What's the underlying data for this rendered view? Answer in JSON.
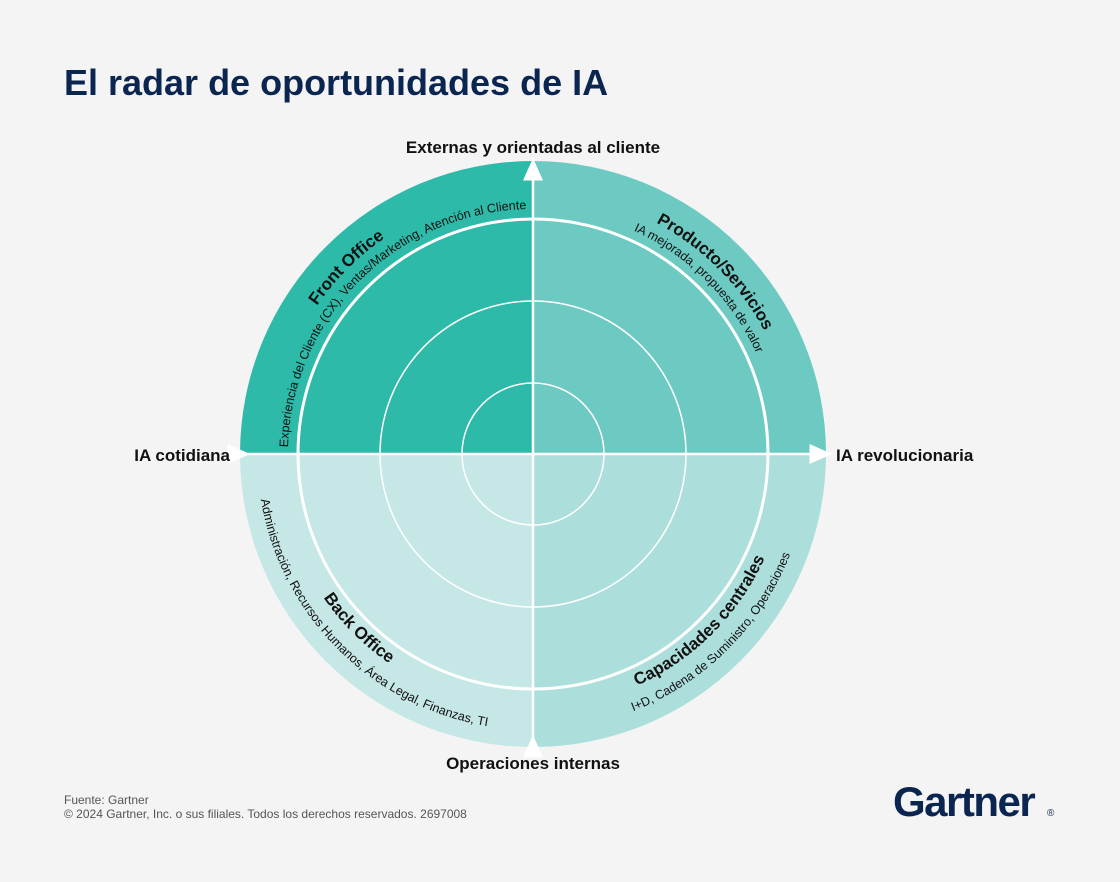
{
  "header": {
    "title": "El radar de oportunidades de IA"
  },
  "axes": {
    "top": "Externas y orientadas al cliente",
    "bottom": "Operaciones internas",
    "left": "IA cotidiana",
    "right": "IA revolucionaria"
  },
  "quadrants": [
    {
      "title": "Front Office",
      "subtitle": "Experiencia del Cliente (CX), Ventas/Marketing, Atención al Cliente"
    },
    {
      "title": "Producto/Servicios",
      "subtitle": "IA mejorada, propuesta de valor"
    },
    {
      "title": "Capacidades centrales",
      "subtitle": "I+D, Cadena de Suministro, Operaciones"
    },
    {
      "title": "Back Office",
      "subtitle": "Administración, Recursos Humanos, Área Legal, Finanzas, TI"
    }
  ],
  "footer": {
    "source": "Fuente: Gartner",
    "copyright": "© 2024 Gartner, Inc. o sus filiales. Todos los derechos reservados. 2697008"
  },
  "logo": {
    "name": "Gartner",
    "mark": "®"
  }
}
